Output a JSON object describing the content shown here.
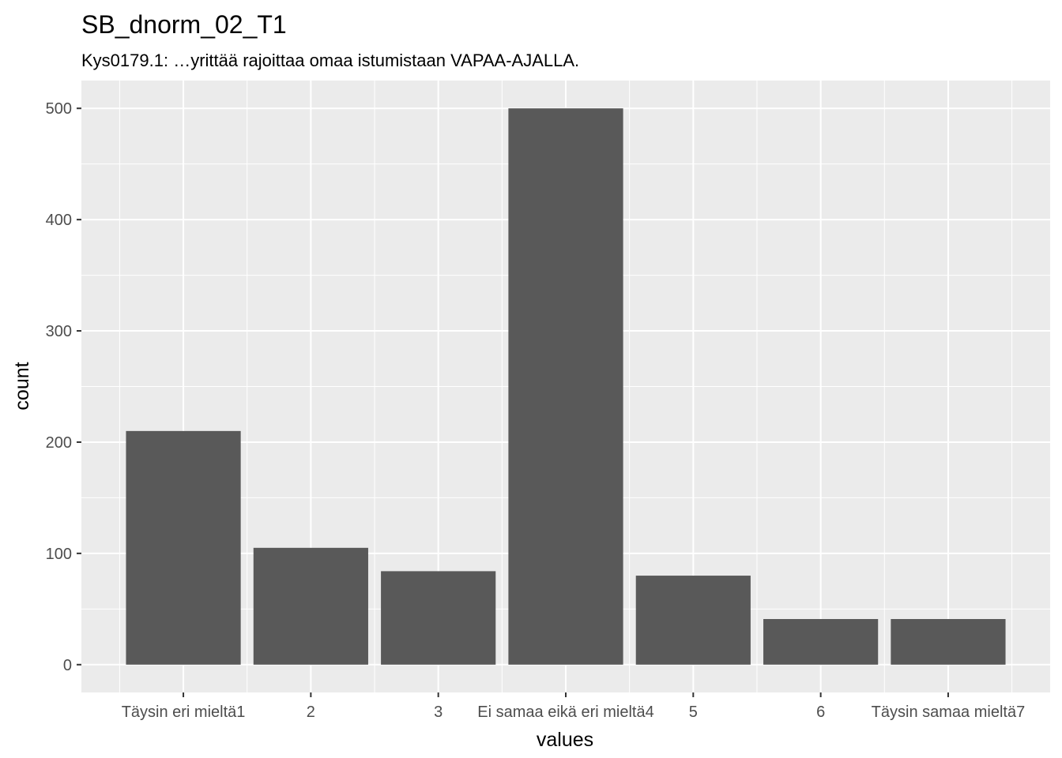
{
  "chart_data": {
    "type": "bar",
    "title": "SB_dnorm_02_T1",
    "subtitle": "Kys0179.1: …yrittää rajoittaa omaa istumistaan VAPAA-AJALLA.",
    "xlabel": "values",
    "ylabel": "count",
    "categories": [
      "Täysin eri mieltä1",
      "2",
      "3",
      "Ei samaa eikä eri mieltä4",
      "5",
      "6",
      "Täysin samaa mieltä7"
    ],
    "values": [
      210,
      105,
      84,
      500,
      80,
      41,
      41
    ],
    "yticks": [
      0,
      100,
      200,
      300,
      400,
      500
    ],
    "ytick_labels": [
      "0",
      "100",
      "200",
      "300",
      "400",
      "500"
    ],
    "ylim": [
      -25,
      525
    ],
    "grid": true,
    "panel_color": "#ebebeb",
    "bar_color": "#595959",
    "grid_color": "#ffffff"
  }
}
